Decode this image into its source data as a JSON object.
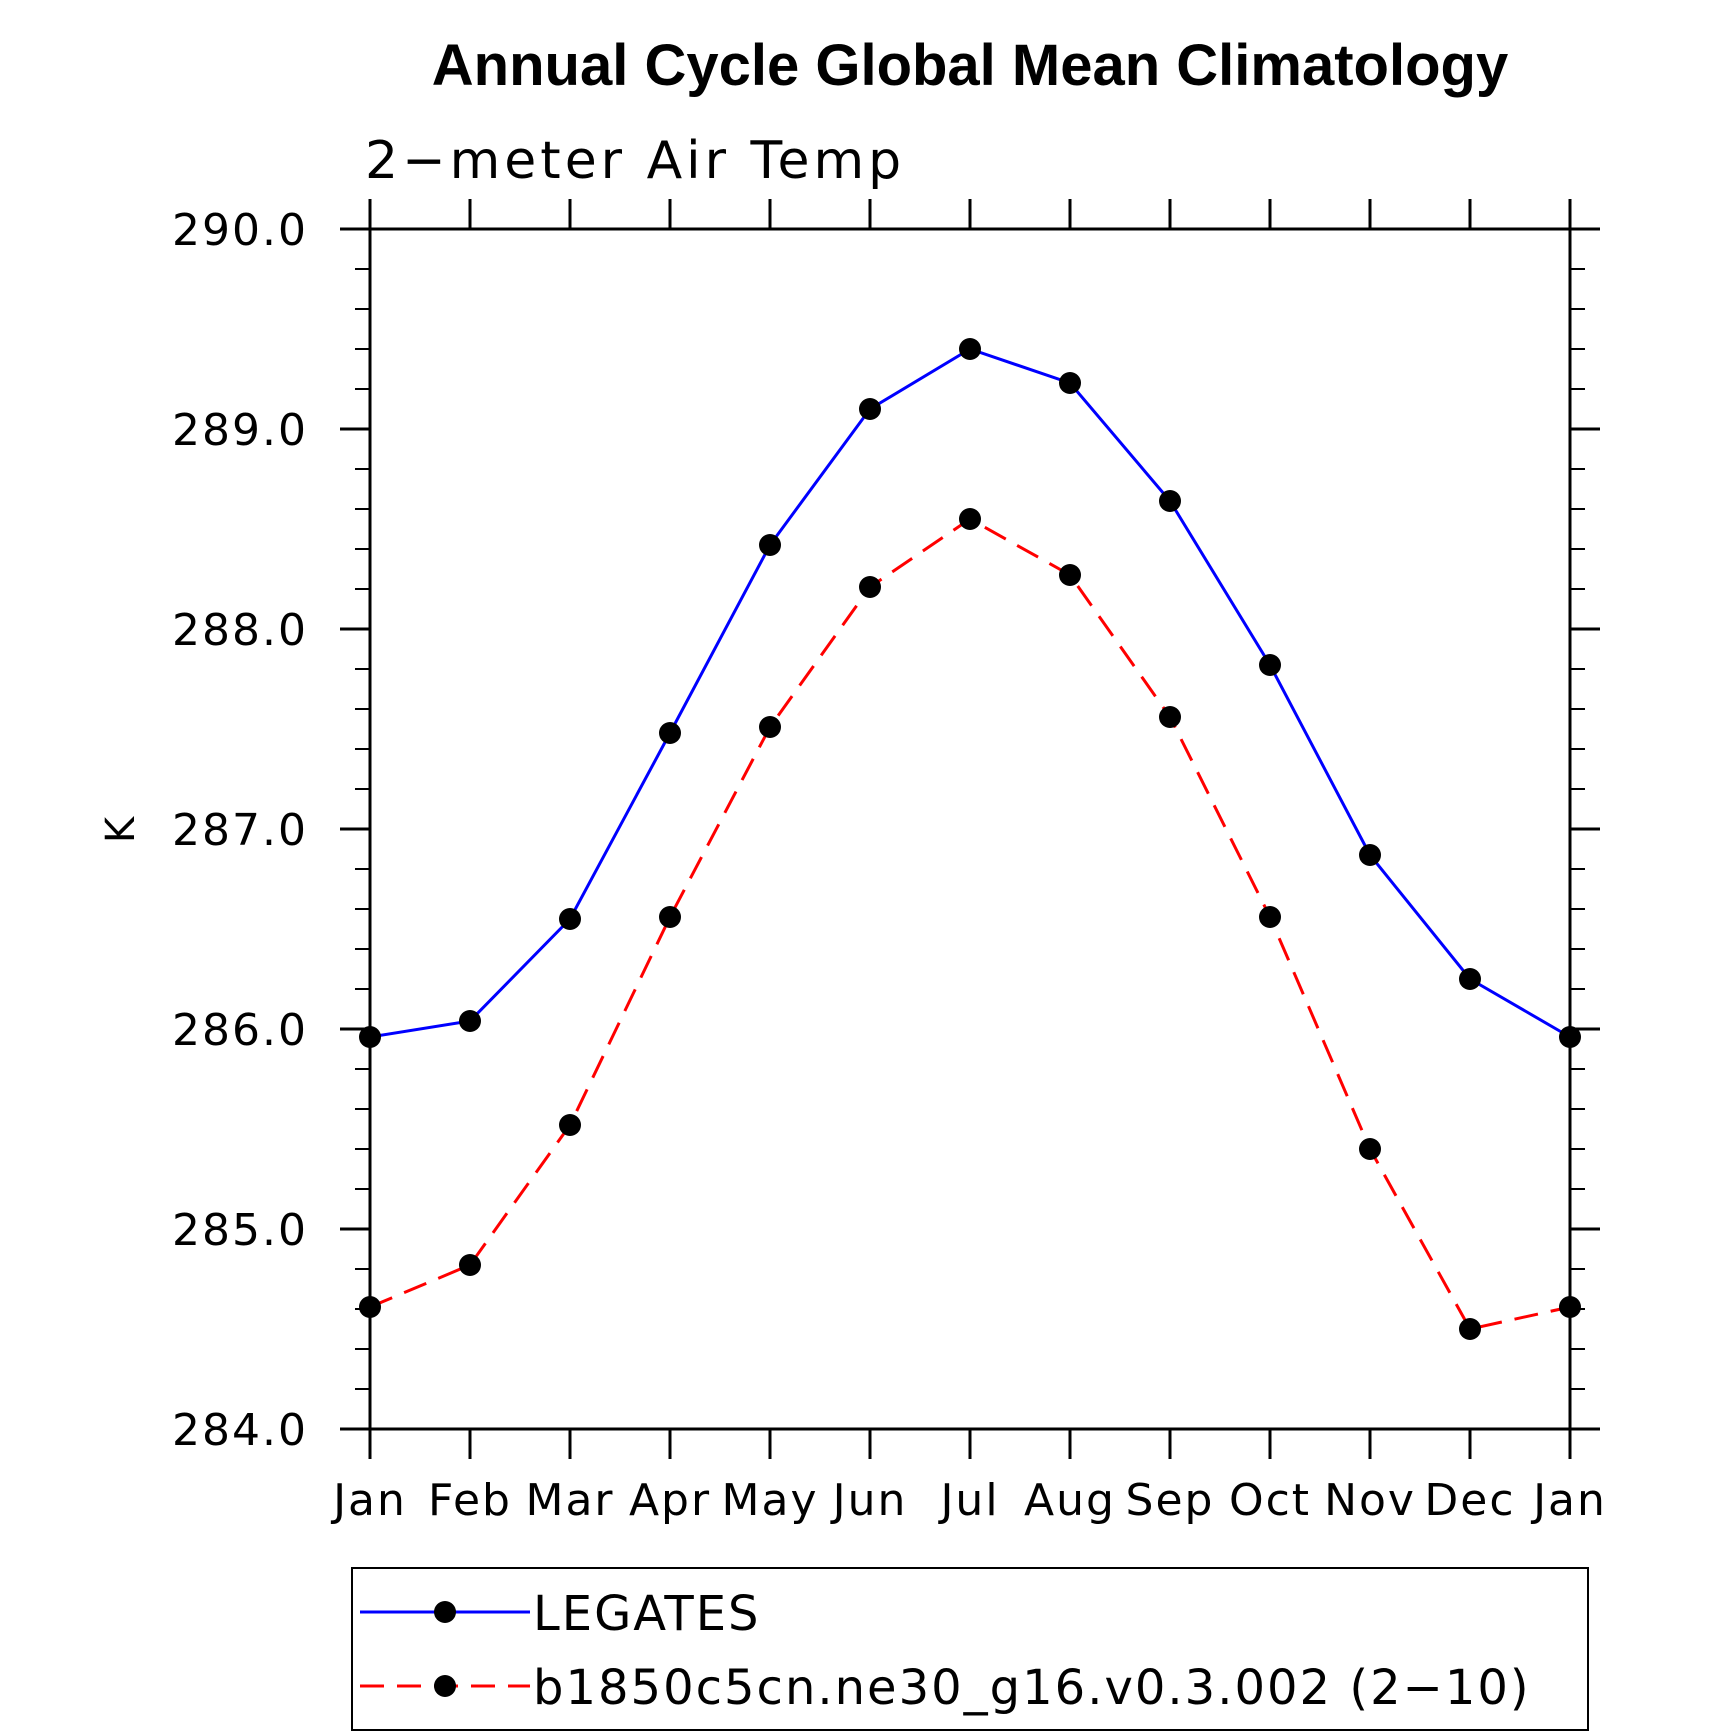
{
  "chart_data": {
    "type": "line",
    "title": "Annual Cycle Global Mean Climatology",
    "subtitle": "2−meter Air Temp",
    "xlabel": "",
    "ylabel": "K",
    "categories": [
      "Jan",
      "Feb",
      "Mar",
      "Apr",
      "May",
      "Jun",
      "Jul",
      "Aug",
      "Sep",
      "Oct",
      "Nov",
      "Dec",
      "Jan"
    ],
    "ylim": [
      284.0,
      290.0
    ],
    "yticks": [
      "284.0",
      "285.0",
      "286.0",
      "287.0",
      "288.0",
      "289.0",
      "290.0"
    ],
    "grid": false,
    "legend_position": "bottom",
    "series": [
      {
        "name": "LEGATES",
        "color": "#0000ff",
        "line_style": "solid",
        "marker": "filled-circle",
        "values": [
          285.96,
          286.04,
          286.55,
          287.48,
          288.42,
          289.1,
          289.4,
          289.23,
          288.64,
          287.82,
          286.87,
          286.25,
          285.96
        ]
      },
      {
        "name": "b1850c5cn.ne30_g16.v0.3.002 (2−10)",
        "color": "#ff0000",
        "line_style": "dashed",
        "marker": "filled-circle",
        "values": [
          284.61,
          284.82,
          285.52,
          286.56,
          287.51,
          288.21,
          288.55,
          288.27,
          287.56,
          286.56,
          285.4,
          284.5,
          284.61
        ]
      }
    ]
  }
}
